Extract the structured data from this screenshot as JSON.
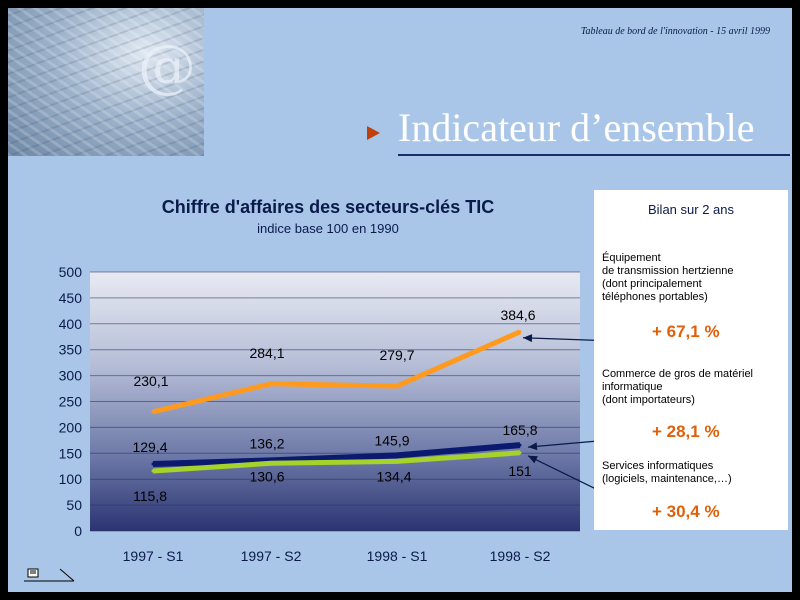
{
  "header": {
    "note": "Tableau de bord de l'innovation - 15 avril 1999",
    "title": "Indicateur d’ensemble"
  },
  "colors": {
    "background": "#a9c6e8",
    "accent_orange": "#ff9a1e",
    "navy": "#0b1a6e",
    "green": "#a6d32a",
    "percent": "#e0600a"
  },
  "icons": {
    "title_bullet": "triangle-right-icon",
    "corner": "at-sign-decorative-icon",
    "bottom": "page-tool-icon"
  },
  "chart_data": {
    "type": "line",
    "title": "Chiffre d'affaires des secteurs-clés TIC",
    "subtitle": "indice base 100 en 1990",
    "categories": [
      "1997 - S1",
      "1997 - S2",
      "1998 - S1",
      "1998 - S2"
    ],
    "ylim": [
      0,
      500
    ],
    "yticks": [
      "0",
      "50",
      "100",
      "150",
      "200",
      "250",
      "300",
      "350",
      "400",
      "450",
      "500"
    ],
    "grid": true,
    "series": [
      {
        "values": [
          230.1,
          284.1,
          279.7,
          384.6
        ],
        "labels": [
          "230,1",
          "284,1",
          "279,7",
          "384,6"
        ],
        "color": "#ff9a1e"
      },
      {
        "values": [
          129.4,
          136.2,
          145.9,
          165.8
        ],
        "labels": [
          "129,4",
          "136,2",
          "145,9",
          "165,8"
        ],
        "color": "#0b1a6e"
      },
      {
        "values": [
          115.8,
          130.6,
          134.4,
          151
        ],
        "labels": [
          "115,8",
          "130,6",
          "134,4",
          "151"
        ],
        "color": "#a6d32a"
      }
    ]
  },
  "bilan": {
    "title": "Bilan sur 2 ans",
    "sectors": [
      {
        "lines": [
          "Équipement",
          "de transmission hertzienne",
          "(dont principalement",
          "téléphones portables)"
        ],
        "change": "+ 67,1 %"
      },
      {
        "lines": [
          "Commerce de gros de matériel",
          "informatique",
          "(dont importateurs)"
        ],
        "change": "+ 28,1 %"
      },
      {
        "lines": [
          "Services informatiques",
          "(logiciels, maintenance,…)"
        ],
        "change": "+ 30,4 %"
      }
    ]
  }
}
